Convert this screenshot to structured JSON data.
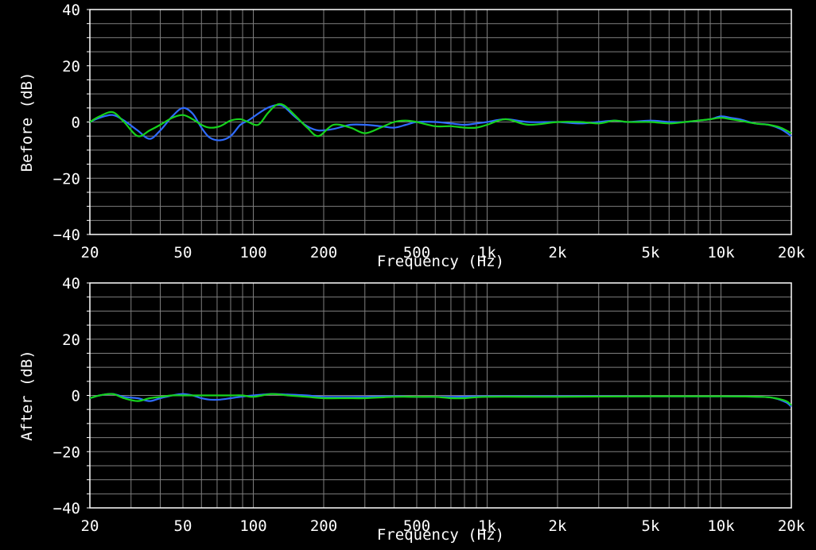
{
  "colors": {
    "background": "#000000",
    "axis": "#ffffff",
    "grid": "#7f7f7f",
    "series_blue": "#2f6bff",
    "series_green": "#16d21c"
  },
  "chart_data": [
    {
      "type": "line",
      "panel": "before",
      "xlabel": "Frequency (Hz)",
      "ylabel": "Before (dB)",
      "xscale": "log",
      "xlim": [
        20,
        20000
      ],
      "ylim": [
        -40,
        40
      ],
      "grid": true,
      "x_ticks": [
        {
          "value": 20,
          "label": "20"
        },
        {
          "value": 50,
          "label": "50"
        },
        {
          "value": 100,
          "label": "100"
        },
        {
          "value": 200,
          "label": "200"
        },
        {
          "value": 500,
          "label": "500"
        },
        {
          "value": 1000,
          "label": "1k"
        },
        {
          "value": 2000,
          "label": "2k"
        },
        {
          "value": 5000,
          "label": "5k"
        },
        {
          "value": 10000,
          "label": "10k"
        },
        {
          "value": 20000,
          "label": "20k"
        }
      ],
      "y_ticks": [
        {
          "value": 40,
          "label": "40"
        },
        {
          "value": 20,
          "label": "20"
        },
        {
          "value": 0,
          "label": "0"
        },
        {
          "value": -20,
          "label": "−20"
        },
        {
          "value": -40,
          "label": "−40"
        }
      ],
      "series": [
        {
          "color": "#2f6bff",
          "points": [
            [
              20,
              0
            ],
            [
              22,
              1.5
            ],
            [
              25,
              2.5
            ],
            [
              28,
              0.5
            ],
            [
              32,
              -3
            ],
            [
              36,
              -6
            ],
            [
              40,
              -3
            ],
            [
              45,
              2
            ],
            [
              50,
              5
            ],
            [
              55,
              3
            ],
            [
              60,
              -2
            ],
            [
              65,
              -5.5
            ],
            [
              72,
              -6.5
            ],
            [
              80,
              -5
            ],
            [
              88,
              -1
            ],
            [
              95,
              0.5
            ],
            [
              105,
              3
            ],
            [
              115,
              5
            ],
            [
              125,
              6
            ],
            [
              135,
              5.5
            ],
            [
              150,
              2
            ],
            [
              170,
              -1.5
            ],
            [
              190,
              -3
            ],
            [
              220,
              -2.5
            ],
            [
              260,
              -1
            ],
            [
              300,
              -1
            ],
            [
              350,
              -1.5
            ],
            [
              400,
              -2
            ],
            [
              450,
              -1
            ],
            [
              500,
              0
            ],
            [
              600,
              0
            ],
            [
              700,
              -0.5
            ],
            [
              800,
              -1
            ],
            [
              900,
              -0.5
            ],
            [
              1000,
              0
            ],
            [
              1200,
              1
            ],
            [
              1500,
              0
            ],
            [
              2000,
              0
            ],
            [
              2500,
              -0.5
            ],
            [
              3000,
              0
            ],
            [
              3500,
              0.5
            ],
            [
              4000,
              0
            ],
            [
              5000,
              0.5
            ],
            [
              6000,
              0
            ],
            [
              7000,
              0
            ],
            [
              8000,
              0.5
            ],
            [
              9000,
              1
            ],
            [
              10000,
              2
            ],
            [
              11000,
              1.5
            ],
            [
              12000,
              1
            ],
            [
              14000,
              -0.5
            ],
            [
              16000,
              -1
            ],
            [
              18000,
              -2.5
            ],
            [
              20000,
              -5
            ]
          ]
        },
        {
          "color": "#16d21c",
          "points": [
            [
              20,
              0
            ],
            [
              22,
              2
            ],
            [
              25,
              3.5
            ],
            [
              28,
              0
            ],
            [
              32,
              -5
            ],
            [
              36,
              -3
            ],
            [
              40,
              -1
            ],
            [
              45,
              1.5
            ],
            [
              50,
              2.5
            ],
            [
              55,
              1
            ],
            [
              60,
              -1
            ],
            [
              65,
              -2
            ],
            [
              72,
              -1.5
            ],
            [
              80,
              0.5
            ],
            [
              88,
              1
            ],
            [
              95,
              0
            ],
            [
              105,
              -1
            ],
            [
              115,
              3
            ],
            [
              125,
              6
            ],
            [
              135,
              6
            ],
            [
              150,
              2.5
            ],
            [
              170,
              -2
            ],
            [
              190,
              -5
            ],
            [
              220,
              -1
            ],
            [
              260,
              -2
            ],
            [
              300,
              -4
            ],
            [
              350,
              -2
            ],
            [
              400,
              0
            ],
            [
              450,
              0.5
            ],
            [
              500,
              0
            ],
            [
              600,
              -1.5
            ],
            [
              700,
              -1.5
            ],
            [
              800,
              -2
            ],
            [
              900,
              -2
            ],
            [
              1000,
              -1
            ],
            [
              1200,
              1
            ],
            [
              1500,
              -1
            ],
            [
              2000,
              0
            ],
            [
              2500,
              0
            ],
            [
              3000,
              -0.5
            ],
            [
              3500,
              0.5
            ],
            [
              4000,
              0
            ],
            [
              5000,
              0
            ],
            [
              6000,
              -0.5
            ],
            [
              7000,
              0
            ],
            [
              8000,
              0.5
            ],
            [
              9000,
              1
            ],
            [
              10000,
              1.5
            ],
            [
              11000,
              1
            ],
            [
              12000,
              0.5
            ],
            [
              14000,
              -0.5
            ],
            [
              16000,
              -1
            ],
            [
              18000,
              -2
            ],
            [
              20000,
              -4
            ]
          ]
        }
      ]
    },
    {
      "type": "line",
      "panel": "after",
      "xlabel": "Frequency (Hz)",
      "ylabel": "After (dB)",
      "xscale": "log",
      "xlim": [
        20,
        20000
      ],
      "ylim": [
        -40,
        40
      ],
      "grid": true,
      "x_ticks": [
        {
          "value": 20,
          "label": "20"
        },
        {
          "value": 50,
          "label": "50"
        },
        {
          "value": 100,
          "label": "100"
        },
        {
          "value": 200,
          "label": "200"
        },
        {
          "value": 500,
          "label": "500"
        },
        {
          "value": 1000,
          "label": "1k"
        },
        {
          "value": 2000,
          "label": "2k"
        },
        {
          "value": 5000,
          "label": "5k"
        },
        {
          "value": 10000,
          "label": "10k"
        },
        {
          "value": 20000,
          "label": "20k"
        }
      ],
      "y_ticks": [
        {
          "value": 40,
          "label": "40"
        },
        {
          "value": 20,
          "label": "20"
        },
        {
          "value": 0,
          "label": "0"
        },
        {
          "value": -20,
          "label": "−20"
        },
        {
          "value": -40,
          "label": "−40"
        }
      ],
      "series": [
        {
          "color": "#2f6bff",
          "points": [
            [
              20,
              -1
            ],
            [
              22,
              0
            ],
            [
              25,
              0.5
            ],
            [
              28,
              -0.5
            ],
            [
              32,
              -1
            ],
            [
              36,
              -2
            ],
            [
              40,
              -1
            ],
            [
              45,
              0
            ],
            [
              50,
              0.5
            ],
            [
              55,
              0
            ],
            [
              60,
              -1
            ],
            [
              65,
              -1.5
            ],
            [
              72,
              -1.5
            ],
            [
              80,
              -1
            ],
            [
              88,
              -0.5
            ],
            [
              100,
              0
            ],
            [
              120,
              0.5
            ],
            [
              140,
              0.3
            ],
            [
              170,
              0
            ],
            [
              200,
              -0.5
            ],
            [
              300,
              -0.5
            ],
            [
              400,
              -0.3
            ],
            [
              500,
              -0.5
            ],
            [
              700,
              -0.5
            ],
            [
              1000,
              -0.3
            ],
            [
              2000,
              -0.3
            ],
            [
              5000,
              -0.3
            ],
            [
              10000,
              -0.3
            ],
            [
              15000,
              -0.5
            ],
            [
              17000,
              -1
            ],
            [
              19000,
              -2.5
            ],
            [
              20000,
              -4
            ]
          ]
        },
        {
          "color": "#16d21c",
          "points": [
            [
              20,
              -1
            ],
            [
              22,
              0
            ],
            [
              25,
              0.5
            ],
            [
              28,
              -1
            ],
            [
              32,
              -2
            ],
            [
              36,
              -1
            ],
            [
              40,
              -0.5
            ],
            [
              45,
              0
            ],
            [
              50,
              0
            ],
            [
              55,
              0
            ],
            [
              60,
              0
            ],
            [
              70,
              0
            ],
            [
              80,
              0
            ],
            [
              90,
              0
            ],
            [
              100,
              -0.5
            ],
            [
              120,
              0.5
            ],
            [
              140,
              0
            ],
            [
              170,
              -0.5
            ],
            [
              200,
              -1
            ],
            [
              250,
              -1
            ],
            [
              300,
              -1
            ],
            [
              400,
              -0.5
            ],
            [
              500,
              -0.5
            ],
            [
              600,
              -0.5
            ],
            [
              700,
              -1
            ],
            [
              800,
              -1
            ],
            [
              1000,
              -0.5
            ],
            [
              2000,
              -0.5
            ],
            [
              5000,
              -0.3
            ],
            [
              10000,
              -0.3
            ],
            [
              15000,
              -0.5
            ],
            [
              17000,
              -1
            ],
            [
              19000,
              -2
            ],
            [
              20000,
              -3.5
            ]
          ]
        }
      ]
    }
  ]
}
